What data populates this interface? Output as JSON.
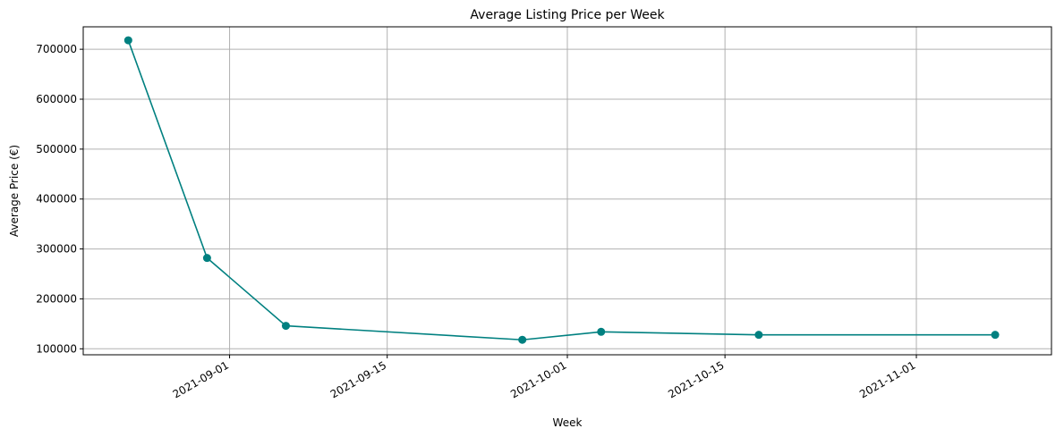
{
  "chart_data": {
    "type": "line",
    "title": "Average Listing Price per Week",
    "xlabel": "Week",
    "ylabel": "Average Price (€)",
    "grid": true,
    "x_axis_kind": "date",
    "xlim": [
      "2021-08-19",
      "2021-11-13"
    ],
    "ylim": [
      88000,
      745000
    ],
    "x_ticks": [
      "2021-09-01",
      "2021-09-15",
      "2021-10-01",
      "2021-10-15",
      "2021-11-01"
    ],
    "y_ticks": [
      100000,
      200000,
      300000,
      400000,
      500000,
      600000,
      700000
    ],
    "color": "#008080",
    "series": [
      {
        "x": [
          "2021-08-23",
          "2021-08-30",
          "2021-09-06",
          "2021-09-27",
          "2021-10-04",
          "2021-10-18",
          "2021-11-08"
        ],
        "values": [
          718000,
          282000,
          146000,
          118000,
          134000,
          128000,
          128000
        ]
      }
    ]
  }
}
